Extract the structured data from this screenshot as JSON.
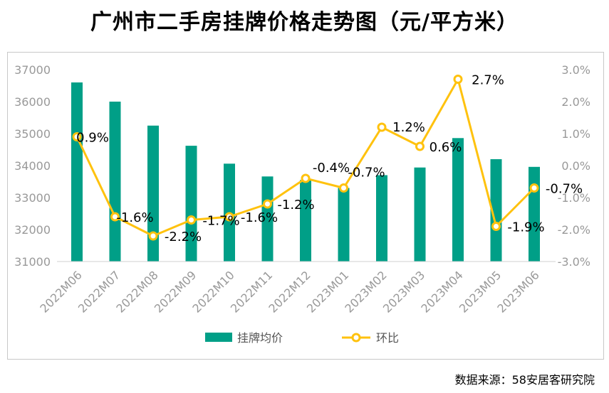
{
  "title": "广州市二手房挂牌价格走势图（元/平方米）",
  "source": "数据来源：58安居客研究院",
  "colors": {
    "bar": "#009F87",
    "line": "#FFC20E",
    "marker_fill": "#ffffff",
    "axis_text": "#999999"
  },
  "chart_data": {
    "type": "bar",
    "title": "广州市二手房挂牌价格走势图（元/平方米）",
    "categories": [
      "2022M06",
      "2022M07",
      "2022M08",
      "2022M09",
      "2022M10",
      "2022M11",
      "2022M12",
      "2023M01",
      "2023M02",
      "2023M03",
      "2023M04",
      "2023M05",
      "2023M06"
    ],
    "series": [
      {
        "name": "挂牌均价",
        "type": "bar",
        "axis": "left",
        "values": [
          36600,
          36000,
          35250,
          34620,
          34060,
          33660,
          33550,
          33300,
          33700,
          33940,
          34860,
          34200,
          33960
        ]
      },
      {
        "name": "环比",
        "type": "line",
        "axis": "right",
        "values": [
          0.009,
          -0.016,
          -0.022,
          -0.017,
          -0.016,
          -0.012,
          -0.004,
          -0.007,
          0.012,
          0.006,
          0.027,
          -0.019,
          -0.007
        ],
        "labels": [
          "0.9%",
          "-1.6%",
          "-2.2%",
          "-1.7%",
          "-1.6%",
          "-1.2%",
          "-0.4%",
          "-0.7%",
          "1.2%",
          "0.6%",
          "2.7%",
          "-1.9%",
          "-0.7%"
        ]
      }
    ],
    "left_axis": {
      "ylim": [
        31000,
        37000
      ],
      "ticks": [
        "31000",
        "32000",
        "33000",
        "34000",
        "35000",
        "36000",
        "37000"
      ]
    },
    "right_axis": {
      "ylim": [
        -0.03,
        0.03
      ],
      "ticks": [
        "-3.0%",
        "-2.0%",
        "-1.0%",
        "0.0%",
        "1.0%",
        "2.0%",
        "3.0%"
      ]
    },
    "legend": {
      "position": "bottom",
      "items": [
        "挂牌均价",
        "环比"
      ]
    },
    "grid": false
  }
}
